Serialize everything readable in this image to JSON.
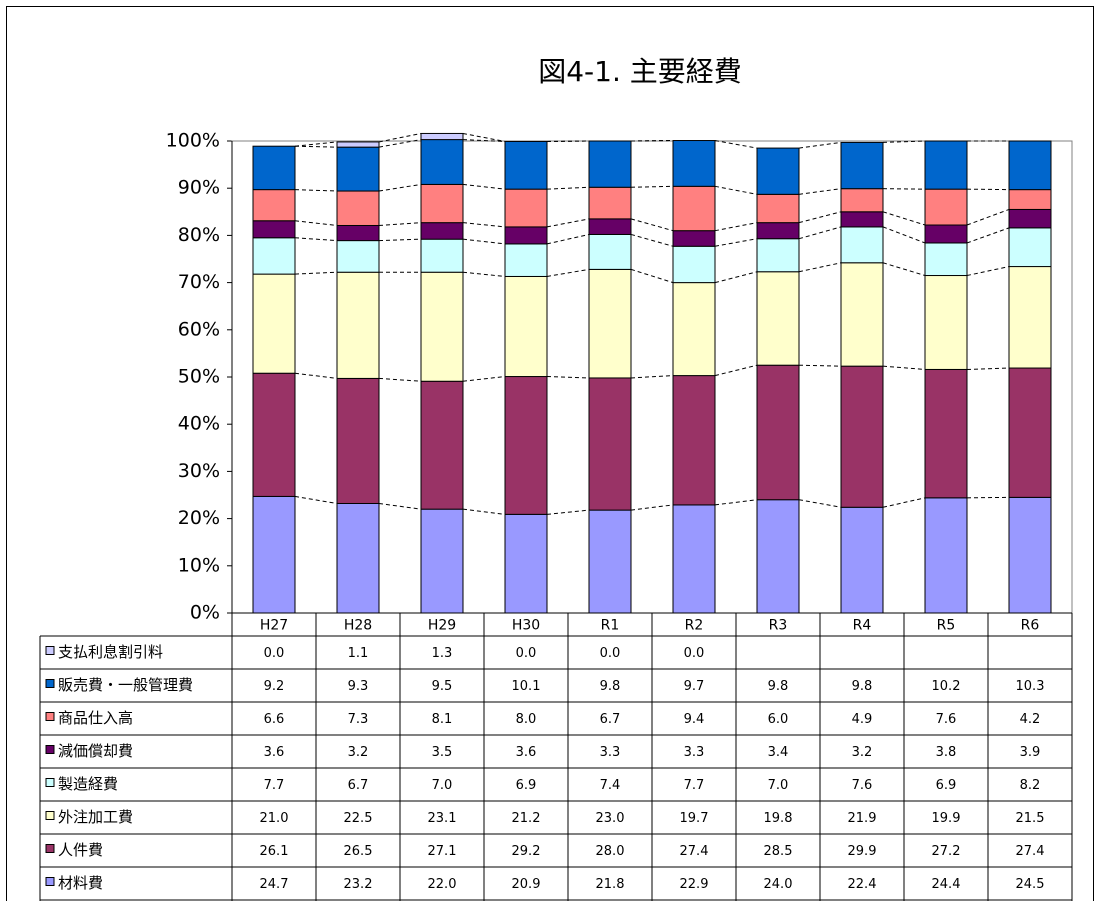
{
  "chart_data": {
    "type": "bar",
    "stacked": true,
    "title": "図4-1. 主要経費",
    "categories": [
      "H27",
      "H28",
      "H29",
      "H30",
      "R1",
      "R2",
      "R3",
      "R4",
      "R5",
      "R6"
    ],
    "ylim": [
      0,
      100
    ],
    "yticks": [
      {
        "value": 0,
        "label": "0%"
      },
      {
        "value": 10,
        "label": "10%"
      },
      {
        "value": 20,
        "label": "20%"
      },
      {
        "value": 30,
        "label": "30%"
      },
      {
        "value": 40,
        "label": "40%"
      },
      {
        "value": 50,
        "label": "50%"
      },
      {
        "value": 60,
        "label": "60%"
      },
      {
        "value": 70,
        "label": "70%"
      },
      {
        "value": 80,
        "label": "80%"
      },
      {
        "value": 90,
        "label": "90%"
      },
      {
        "value": 100,
        "label": "100%"
      }
    ],
    "series": [
      {
        "name": "材料費",
        "color": "#9999ff",
        "values": [
          24.7,
          23.2,
          22.0,
          20.9,
          21.8,
          22.9,
          24.0,
          22.4,
          24.4,
          24.5
        ],
        "value_labels": [
          "24.7",
          "23.2",
          "22.0",
          "20.9",
          "21.8",
          "22.9",
          "24.0",
          "22.4",
          "24.4",
          "24.5"
        ]
      },
      {
        "name": "人件費",
        "color": "#993366",
        "values": [
          26.1,
          26.5,
          27.1,
          29.2,
          28.0,
          27.4,
          28.5,
          29.9,
          27.2,
          27.4
        ],
        "value_labels": [
          "26.1",
          "26.5",
          "27.1",
          "29.2",
          "28.0",
          "27.4",
          "28.5",
          "29.9",
          "27.2",
          "27.4"
        ]
      },
      {
        "name": "外注加工費",
        "color": "#ffffcc",
        "values": [
          21.0,
          22.5,
          23.1,
          21.2,
          23.0,
          19.7,
          19.8,
          21.9,
          19.9,
          21.5
        ],
        "value_labels": [
          "21.0",
          "22.5",
          "23.1",
          "21.2",
          "23.0",
          "19.7",
          "19.8",
          "21.9",
          "19.9",
          "21.5"
        ]
      },
      {
        "name": "製造経費",
        "color": "#ccffff",
        "values": [
          7.7,
          6.7,
          7.0,
          6.9,
          7.4,
          7.7,
          7.0,
          7.6,
          6.9,
          8.2
        ],
        "value_labels": [
          "7.7",
          "6.7",
          "7.0",
          "6.9",
          "7.4",
          "7.7",
          "7.0",
          "7.6",
          "6.9",
          "8.2"
        ]
      },
      {
        "name": "減価償却費",
        "color": "#660066",
        "values": [
          3.6,
          3.2,
          3.5,
          3.6,
          3.3,
          3.3,
          3.4,
          3.2,
          3.8,
          3.9
        ],
        "value_labels": [
          "3.6",
          "3.2",
          "3.5",
          "3.6",
          "3.3",
          "3.3",
          "3.4",
          "3.2",
          "3.8",
          "3.9"
        ]
      },
      {
        "name": "商品仕入高",
        "color": "#ff8080",
        "values": [
          6.6,
          7.3,
          8.1,
          8.0,
          6.7,
          9.4,
          6.0,
          4.9,
          7.6,
          4.2
        ],
        "value_labels": [
          "6.6",
          "7.3",
          "8.1",
          "8.0",
          "6.7",
          "9.4",
          "6.0",
          "4.9",
          "7.6",
          "4.2"
        ]
      },
      {
        "name": "販売費・一般管理費",
        "color": "#0066cc",
        "values": [
          9.2,
          9.3,
          9.5,
          10.1,
          9.8,
          9.7,
          9.8,
          9.8,
          10.2,
          10.3
        ],
        "value_labels": [
          "9.2",
          "9.3",
          "9.5",
          "10.1",
          "9.8",
          "9.7",
          "9.8",
          "9.8",
          "10.2",
          "10.3"
        ]
      },
      {
        "name": "支払利息割引料",
        "color": "#ccccff",
        "values": [
          0,
          1.1,
          1.3,
          0,
          0,
          0,
          null,
          null,
          null,
          null
        ],
        "value_labels": [
          "0.0",
          "1.1",
          "1.3",
          "0.0",
          "0.0",
          "0.0",
          null,
          null,
          null,
          null
        ]
      }
    ]
  }
}
